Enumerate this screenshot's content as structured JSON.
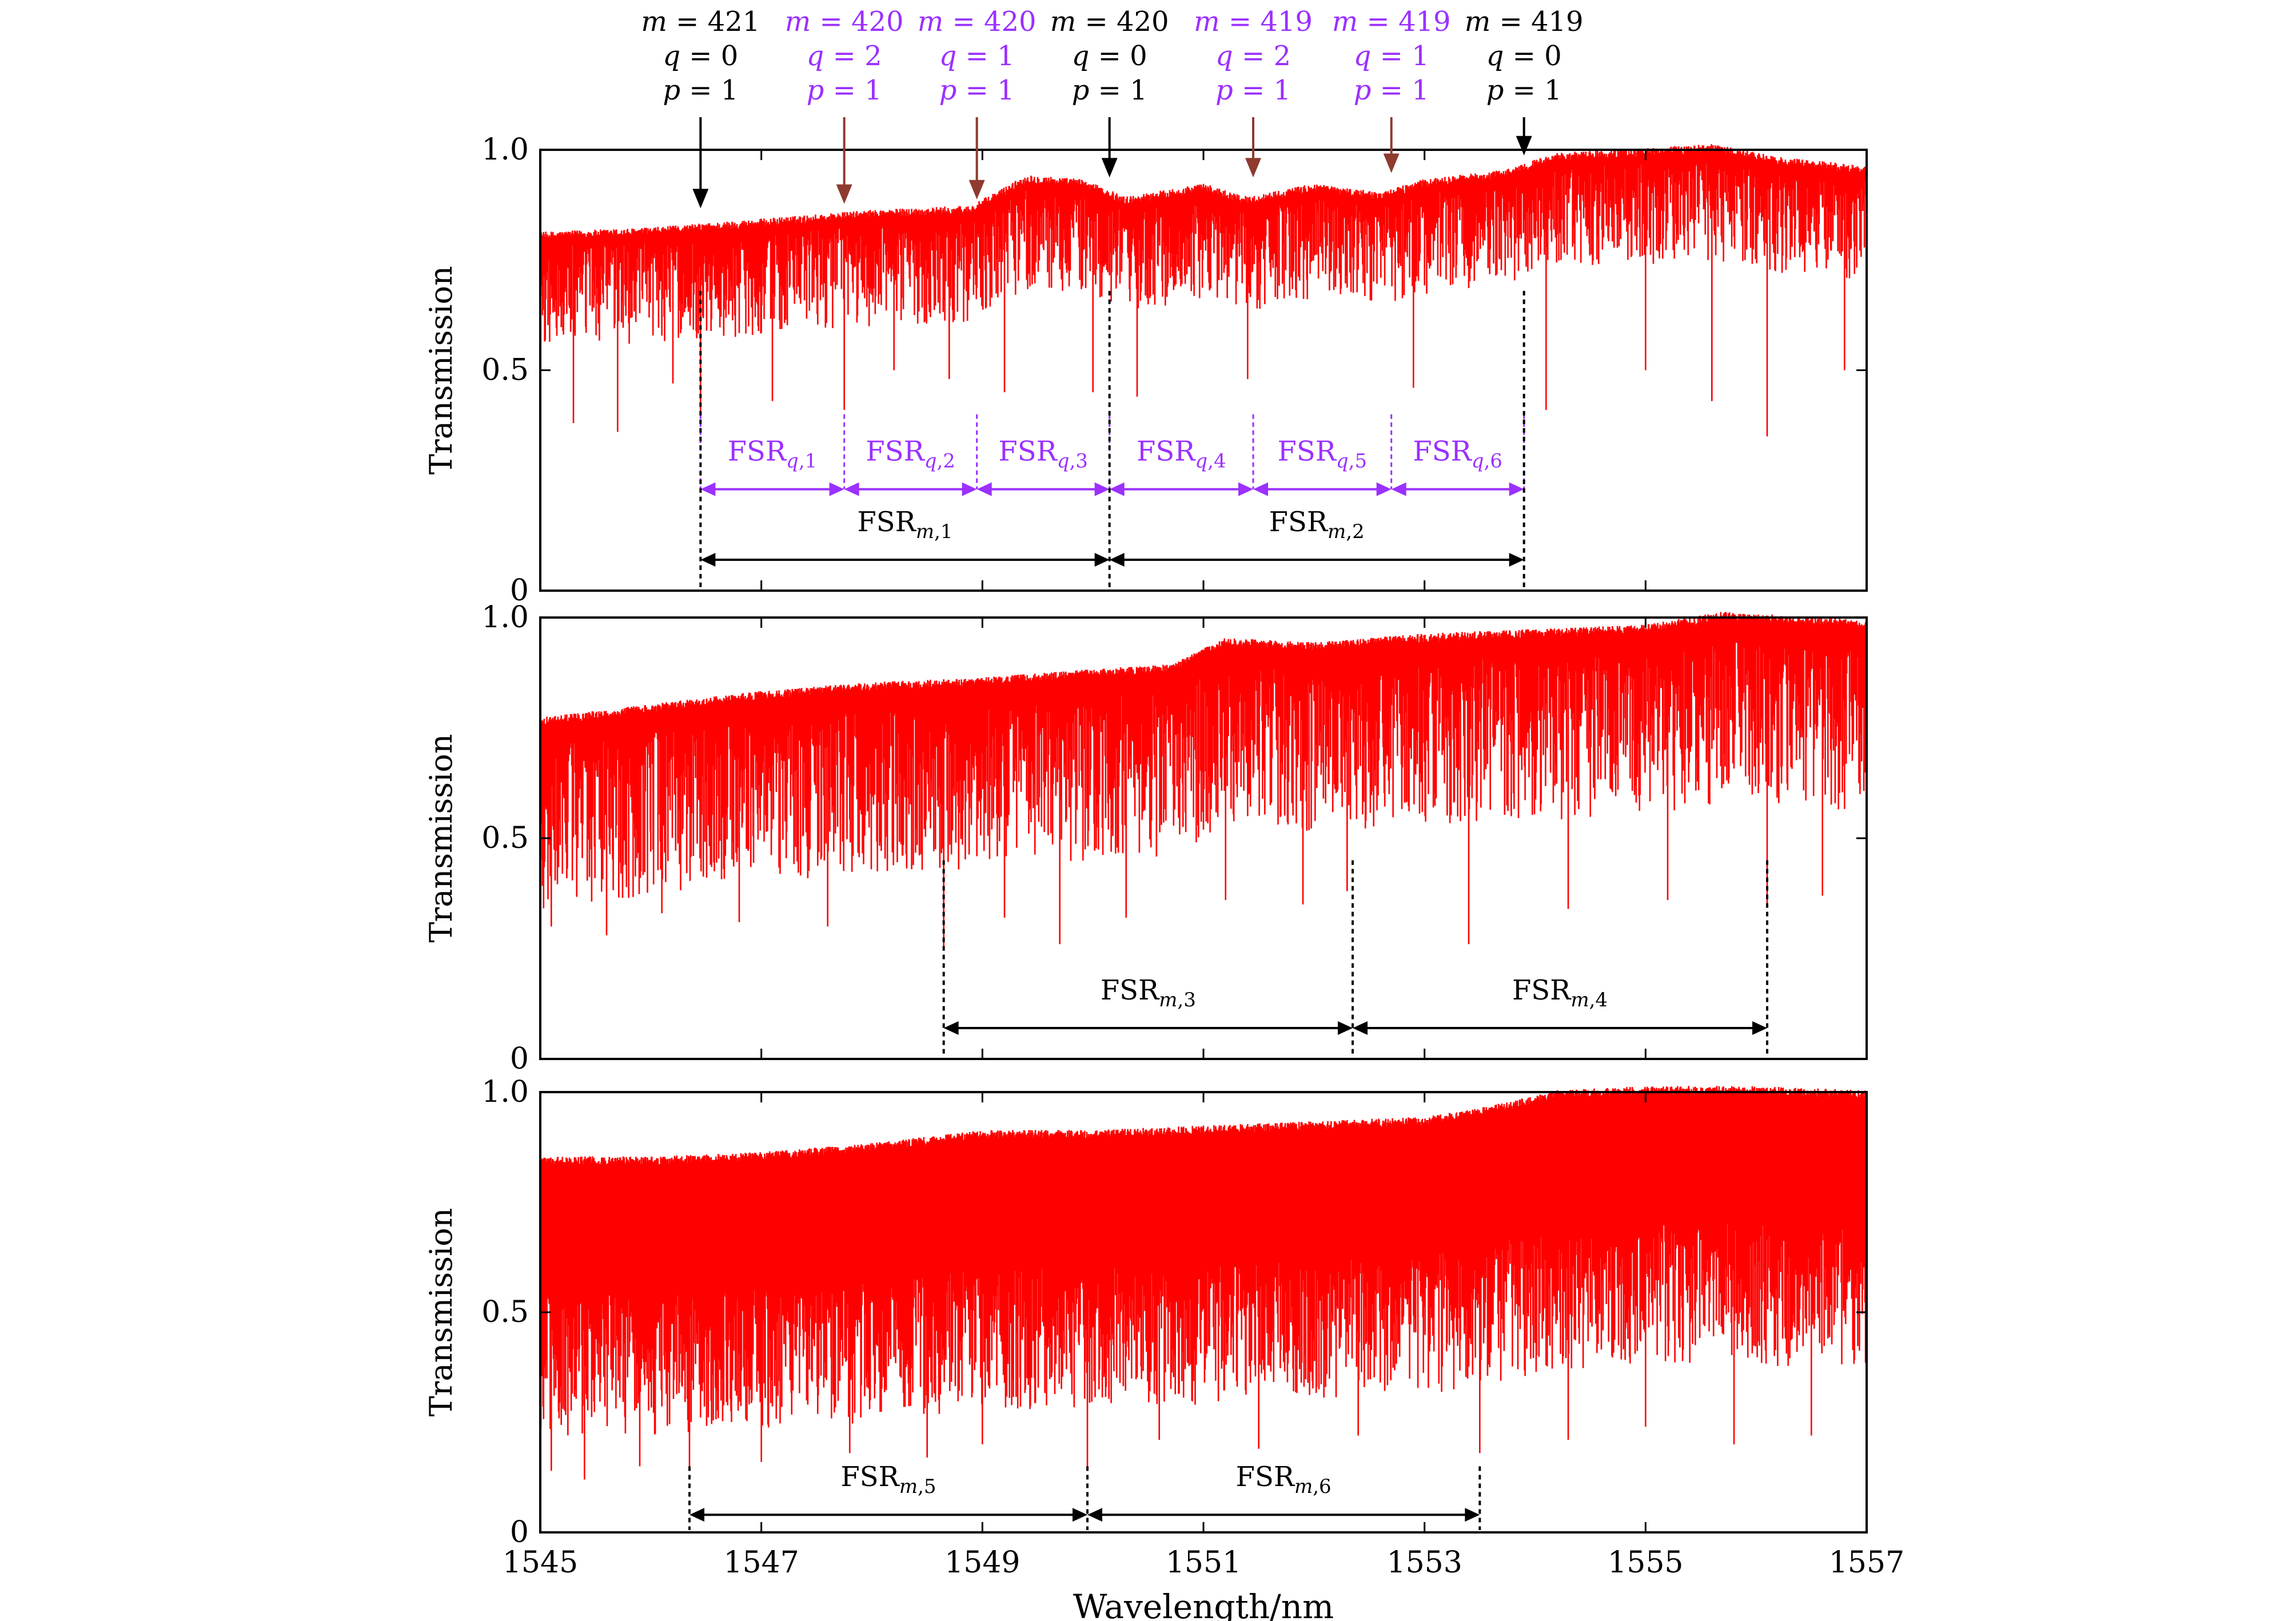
{
  "chart_data": [
    {
      "type": "line",
      "panel": "top",
      "ylabel": "Transmission",
      "xlim": [
        1545,
        1557
      ],
      "ylim": [
        0,
        1.0
      ],
      "y_ticks": [
        "0",
        "0.5",
        "1.0"
      ],
      "series_color": "#ff0000",
      "baseline": [
        [
          1545,
          0.8
        ],
        [
          1546,
          0.81
        ],
        [
          1547,
          0.83
        ],
        [
          1548,
          0.85
        ],
        [
          1548.9,
          0.86
        ],
        [
          1549.4,
          0.93
        ],
        [
          1549.9,
          0.92
        ],
        [
          1550.3,
          0.88
        ],
        [
          1551,
          0.91
        ],
        [
          1551.4,
          0.88
        ],
        [
          1552,
          0.91
        ],
        [
          1552.6,
          0.89
        ],
        [
          1553,
          0.92
        ],
        [
          1553.7,
          0.94
        ],
        [
          1554.2,
          0.98
        ],
        [
          1555,
          0.99
        ],
        [
          1555.6,
          1.0
        ],
        [
          1556.2,
          0.97
        ],
        [
          1557,
          0.95
        ]
      ],
      "depth_range": [
        0.02,
        0.25
      ],
      "deep_dips": [
        [
          1545.3,
          0.38
        ],
        [
          1545.7,
          0.36
        ],
        [
          1546.2,
          0.47
        ],
        [
          1546.45,
          0.4
        ],
        [
          1547.1,
          0.43
        ],
        [
          1547.75,
          0.41
        ],
        [
          1548.2,
          0.5
        ],
        [
          1548.7,
          0.48
        ],
        [
          1549.2,
          0.45
        ],
        [
          1550.0,
          0.45
        ],
        [
          1550.4,
          0.44
        ],
        [
          1551.4,
          0.48
        ],
        [
          1552.9,
          0.46
        ],
        [
          1554.1,
          0.41
        ],
        [
          1555.0,
          0.5
        ],
        [
          1555.6,
          0.43
        ],
        [
          1556.1,
          0.35
        ],
        [
          1556.8,
          0.5
        ]
      ],
      "mode_markers": [
        {
          "x": 1546.45,
          "y_tip": 0.87,
          "color": "#000000",
          "m": "421",
          "q": "0",
          "p": "1"
        },
        {
          "x": 1547.75,
          "y_tip": 0.88,
          "color": "#8e3a2e",
          "label_color": "#9b30ff",
          "m": "420",
          "q": "2",
          "p": "1"
        },
        {
          "x": 1548.95,
          "y_tip": 0.89,
          "color": "#8e3a2e",
          "label_color": "#9b30ff",
          "m": "420",
          "q": "1",
          "p": "1"
        },
        {
          "x": 1550.15,
          "y_tip": 0.94,
          "color": "#000000",
          "m": "420",
          "q": "0",
          "p": "1"
        },
        {
          "x": 1551.45,
          "y_tip": 0.94,
          "color": "#8e3a2e",
          "label_color": "#9b30ff",
          "m": "419",
          "q": "2",
          "p": "1"
        },
        {
          "x": 1552.7,
          "y_tip": 0.95,
          "color": "#8e3a2e",
          "label_color": "#9b30ff",
          "m": "419",
          "q": "1",
          "p": "1"
        },
        {
          "x": 1553.9,
          "y_tip": 0.99,
          "color": "#000000",
          "m": "419",
          "q": "0",
          "p": "1"
        }
      ],
      "fsr_q": [
        {
          "x1": 1546.45,
          "x2": 1547.75,
          "y": 0.23,
          "label": "FSR",
          "sub": "q,1"
        },
        {
          "x1": 1547.75,
          "x2": 1548.95,
          "y": 0.23,
          "label": "FSR",
          "sub": "q,2"
        },
        {
          "x1": 1548.95,
          "x2": 1550.15,
          "y": 0.23,
          "label": "FSR",
          "sub": "q,3"
        },
        {
          "x1": 1550.15,
          "x2": 1551.45,
          "y": 0.23,
          "label": "FSR",
          "sub": "q,4"
        },
        {
          "x1": 1551.45,
          "x2": 1552.7,
          "y": 0.23,
          "label": "FSR",
          "sub": "q,5"
        },
        {
          "x1": 1552.7,
          "x2": 1553.9,
          "y": 0.23,
          "label": "FSR",
          "sub": "q,6"
        }
      ],
      "fsr_m": [
        {
          "x1": 1546.45,
          "x2": 1550.15,
          "y": 0.07,
          "label": "FSR",
          "sub": "m,1"
        },
        {
          "x1": 1550.15,
          "x2": 1553.9,
          "y": 0.07,
          "label": "FSR",
          "sub": "m,2"
        }
      ]
    },
    {
      "type": "line",
      "panel": "middle",
      "ylabel": "Transmission",
      "xlim": [
        1545,
        1557
      ],
      "ylim": [
        0,
        1.0
      ],
      "y_ticks": [
        "0",
        "0.5",
        "1.0"
      ],
      "series_color": "#ff0000",
      "baseline": [
        [
          1545,
          0.76
        ],
        [
          1546,
          0.79
        ],
        [
          1547,
          0.82
        ],
        [
          1548,
          0.84
        ],
        [
          1549,
          0.85
        ],
        [
          1550,
          0.87
        ],
        [
          1550.7,
          0.88
        ],
        [
          1551.2,
          0.94
        ],
        [
          1552,
          0.93
        ],
        [
          1553,
          0.95
        ],
        [
          1554,
          0.96
        ],
        [
          1555,
          0.97
        ],
        [
          1555.7,
          1.0
        ],
        [
          1557,
          0.98
        ]
      ],
      "depth_range": [
        0.05,
        0.42
      ],
      "deep_dips": [
        [
          1545.1,
          0.3
        ],
        [
          1545.6,
          0.28
        ],
        [
          1546.1,
          0.33
        ],
        [
          1546.8,
          0.31
        ],
        [
          1547.6,
          0.3
        ],
        [
          1548.65,
          0.25
        ],
        [
          1549.2,
          0.32
        ],
        [
          1549.7,
          0.26
        ],
        [
          1550.3,
          0.32
        ],
        [
          1551.2,
          0.36
        ],
        [
          1551.9,
          0.35
        ],
        [
          1552.3,
          0.38
        ],
        [
          1553.4,
          0.26
        ],
        [
          1554.3,
          0.34
        ],
        [
          1555.2,
          0.36
        ],
        [
          1556.1,
          0.35
        ],
        [
          1556.6,
          0.37
        ]
      ],
      "fsr_m": [
        {
          "x1": 1548.65,
          "x2": 1552.35,
          "y": 0.07,
          "label": "FSR",
          "sub": "m,3"
        },
        {
          "x1": 1552.35,
          "x2": 1556.1,
          "y": 0.07,
          "label": "FSR",
          "sub": "m,4"
        }
      ]
    },
    {
      "type": "line",
      "panel": "bottom",
      "ylabel": "Transmission",
      "xlabel": "Wavelength/nm",
      "xlim": [
        1545,
        1557
      ],
      "ylim": [
        0,
        1.0
      ],
      "x_ticks": [
        "1545",
        "1547",
        "1549",
        "1551",
        "1553",
        "1555",
        "1557"
      ],
      "y_ticks": [
        "0",
        "0.5",
        "1.0"
      ],
      "series_color": "#ff0000",
      "baseline": [
        [
          1545,
          0.84
        ],
        [
          1546,
          0.84
        ],
        [
          1547,
          0.85
        ],
        [
          1548,
          0.87
        ],
        [
          1549,
          0.9
        ],
        [
          1550,
          0.9
        ],
        [
          1551,
          0.91
        ],
        [
          1552,
          0.92
        ],
        [
          1553,
          0.93
        ],
        [
          1553.5,
          0.95
        ],
        [
          1554.2,
          0.99
        ],
        [
          1555,
          1.0
        ],
        [
          1556,
          1.0
        ],
        [
          1557,
          0.99
        ]
      ],
      "depth_range": [
        0.3,
        0.62
      ],
      "deep_dips": [
        [
          1545.1,
          0.14
        ],
        [
          1545.4,
          0.12
        ],
        [
          1545.9,
          0.15
        ],
        [
          1546.35,
          0.15
        ],
        [
          1547.0,
          0.16
        ],
        [
          1547.8,
          0.18
        ],
        [
          1548.5,
          0.17
        ],
        [
          1549.0,
          0.2
        ],
        [
          1549.95,
          0.14
        ],
        [
          1550.6,
          0.21
        ],
        [
          1551.5,
          0.19
        ],
        [
          1552.4,
          0.22
        ],
        [
          1553.5,
          0.18
        ],
        [
          1554.3,
          0.21
        ],
        [
          1555.0,
          0.24
        ],
        [
          1555.8,
          0.2
        ],
        [
          1556.5,
          0.22
        ]
      ],
      "fsr_m": [
        {
          "x1": 1546.35,
          "x2": 1549.95,
          "y": 0.04,
          "label": "FSR",
          "sub": "m,5"
        },
        {
          "x1": 1549.95,
          "x2": 1553.5,
          "y": 0.04,
          "label": "FSR",
          "sub": "m,6"
        }
      ]
    }
  ]
}
